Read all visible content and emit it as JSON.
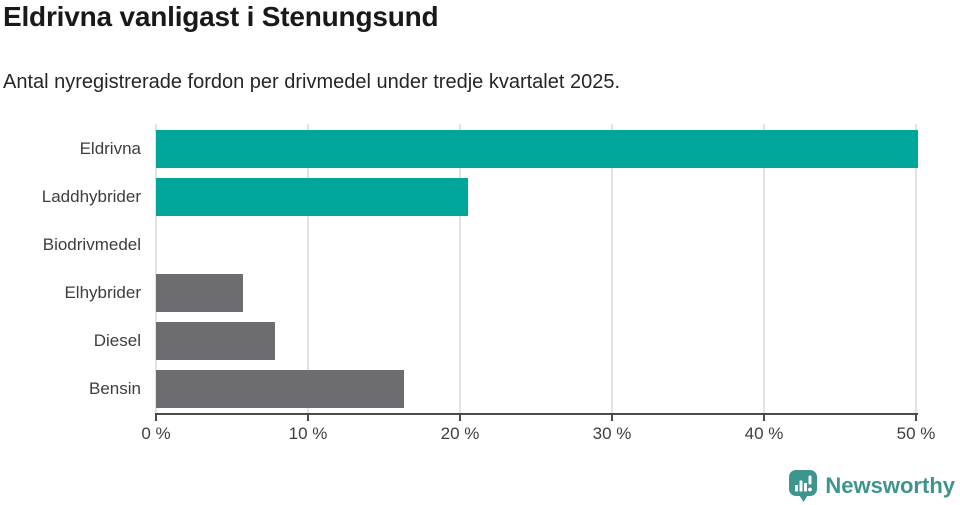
{
  "chart_data": {
    "type": "bar",
    "orientation": "horizontal",
    "title": "Eldrivna vanligast i Stenungsund",
    "subtitle": "Antal nyregistrerade fordon per drivmedel under tredje kvartalet 2025.",
    "categories": [
      "Eldrivna",
      "Laddhybrider",
      "Biodrivmedel",
      "Elhybrider",
      "Diesel",
      "Bensin"
    ],
    "values": [
      50.1,
      20.5,
      0,
      5.7,
      7.8,
      16.3
    ],
    "unit": "%",
    "xlabel": "",
    "ylabel": "",
    "xlim": [
      0,
      50
    ],
    "x_ticks": [
      0,
      10,
      20,
      30,
      40,
      50
    ],
    "x_tick_labels": [
      "0 %",
      "10 %",
      "20 %",
      "30 %",
      "40 %",
      "50 %"
    ],
    "grid": true,
    "legend": false,
    "bar_colors": [
      "#00a69a",
      "#00a69a",
      "#6c6c71",
      "#6c6c71",
      "#6c6c71",
      "#6c6c71"
    ],
    "highlight_color": "#00a69a",
    "default_color": "#6c6c71",
    "gridline_color": "#e2e2e2",
    "axis_color": "#4b4b4b"
  },
  "branding": {
    "logo_text": "Newsworthy",
    "logo_color": "#3e948e",
    "logo_icon": "speech-bubble-bar-chart-icon"
  }
}
